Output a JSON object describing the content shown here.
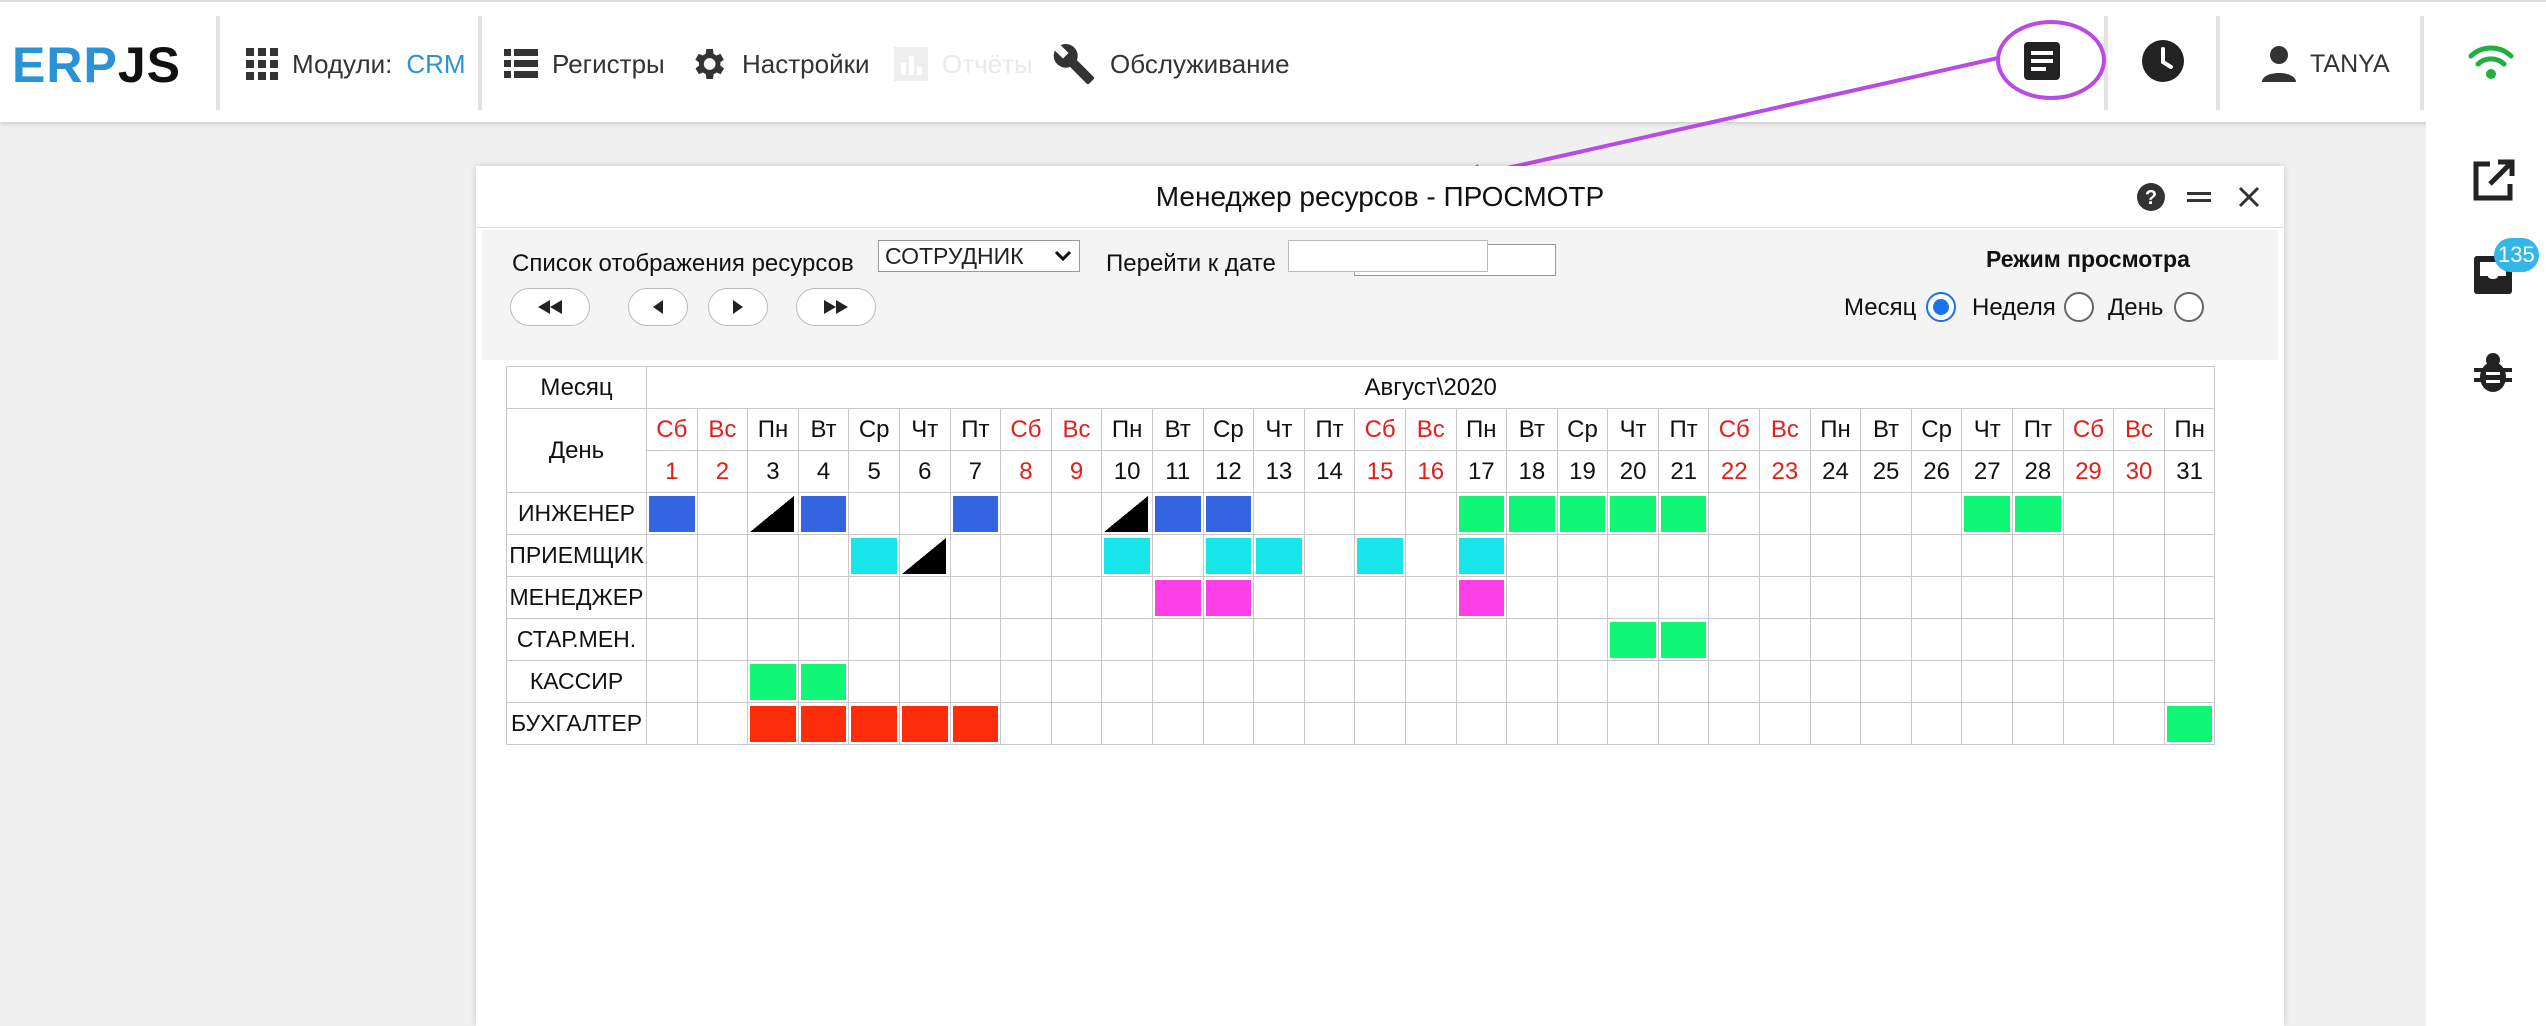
{
  "app": {
    "logo_part1": "ERP",
    "logo_part2": "JS"
  },
  "topnav": {
    "modules_label": "Модули:",
    "modules_value": "CRM",
    "registers": "Регистры",
    "settings": "Настройки",
    "reports": "Отчёты",
    "service": "Обслуживание",
    "user": "TANYA"
  },
  "rail": {
    "badge": "135"
  },
  "window": {
    "title": "Менеджер ресурсов - ПРОСМОТР",
    "list_label": "Список отображения ресурсов",
    "list_value": "СОТРУДНИК",
    "goto_label": "Перейти к дате",
    "goto_value": "",
    "mode_title": "Режим просмотра",
    "mode_month": "Месяц",
    "mode_week": "Неделя",
    "mode_day": "День",
    "mode_selected": "Месяц"
  },
  "grid": {
    "month_header": "Месяц",
    "day_header": "День",
    "period": "Август\\2020",
    "weekdays": [
      "Сб",
      "Вс",
      "Пн",
      "Вт",
      "Ср",
      "Чт",
      "Пт",
      "Сб",
      "Вс",
      "Пн",
      "Вт",
      "Ср",
      "Чт",
      "Пт",
      "Сб",
      "Вс",
      "Пн",
      "Вт",
      "Ср",
      "Чт",
      "Пт",
      "Сб",
      "Вс",
      "Пн",
      "Вт",
      "Ср",
      "Чт",
      "Пт",
      "Сб",
      "Вс",
      "Пн"
    ],
    "days": [
      1,
      2,
      3,
      4,
      5,
      6,
      7,
      8,
      9,
      10,
      11,
      12,
      13,
      14,
      15,
      16,
      17,
      18,
      19,
      20,
      21,
      22,
      23,
      24,
      25,
      26,
      27,
      28,
      29,
      30,
      31
    ],
    "weekend_color": "#e0201b",
    "colors": {
      "b": "#3464e0",
      "c": "#19e6eb",
      "g": "#0ff774",
      "m": "#fb3fe9",
      "r": "#fd2c0b"
    },
    "rows": [
      {
        "name": "ИНЖЕНЕР",
        "cells": [
          "b",
          "",
          "t",
          "b",
          "",
          "",
          "b",
          "",
          "",
          "t",
          "b",
          "b",
          "",
          "",
          "",
          "",
          "g",
          "g",
          "g",
          "g",
          "g",
          "",
          "",
          "",
          "",
          "",
          "g",
          "g",
          "",
          "",
          ""
        ]
      },
      {
        "name": "ПРИЕМЩИК",
        "cells": [
          "",
          "",
          "",
          "",
          "c",
          "t",
          "",
          "",
          "",
          "c",
          "",
          "c",
          "c",
          "",
          "c",
          "",
          "c",
          "",
          "",
          "",
          "",
          "",
          "",
          "",
          "",
          "",
          "",
          "",
          "",
          "",
          ""
        ]
      },
      {
        "name": "МЕНЕДЖЕР",
        "cells": [
          "",
          "",
          "",
          "",
          "",
          "",
          "",
          "",
          "",
          "",
          "m",
          "m",
          "",
          "",
          "",
          "",
          "m",
          "",
          "",
          "",
          "",
          "",
          "",
          "",
          "",
          "",
          "",
          "",
          "",
          "",
          ""
        ]
      },
      {
        "name": "СТАР.МЕН.",
        "cells": [
          "",
          "",
          "",
          "",
          "",
          "",
          "",
          "",
          "",
          "",
          "",
          "",
          "",
          "",
          "",
          "",
          "",
          "",
          "",
          "g",
          "g",
          "",
          "",
          "",
          "",
          "",
          "",
          "",
          "",
          "",
          ""
        ]
      },
      {
        "name": "КАССИР",
        "cells": [
          "",
          "",
          "g",
          "g",
          "",
          "",
          "",
          "",
          "",
          "",
          "",
          "",
          "",
          "",
          "",
          "",
          "",
          "",
          "",
          "",
          "",
          "",
          "",
          "",
          "",
          "",
          "",
          "",
          "",
          "",
          ""
        ]
      },
      {
        "name": "БУХГАЛТЕР",
        "cells": [
          "",
          "",
          "r",
          "r",
          "r",
          "r",
          "r",
          "",
          "",
          "",
          "",
          "",
          "",
          "",
          "",
          "",
          "",
          "",
          "",
          "",
          "",
          "",
          "",
          "",
          "",
          "",
          "",
          "",
          "",
          "",
          "g"
        ]
      }
    ]
  }
}
